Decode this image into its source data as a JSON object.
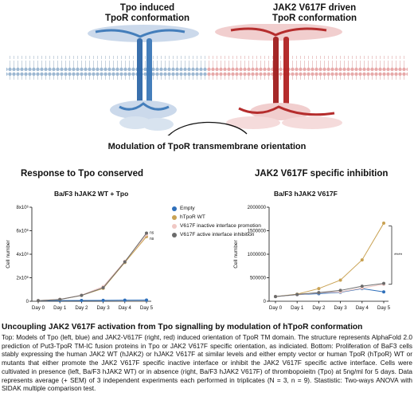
{
  "figure": {
    "left_conformation_title": "Tpo induced\nTpoR conformation",
    "right_conformation_title": "JAK2 V617F driven\nTpoR conformation",
    "modulation_label": "Modulation of TpoR transmembrane orientation",
    "left_section_title": "Response to Tpo conserved",
    "right_section_title": "JAK2 V617F specific inhibition",
    "colors": {
      "tpo_left": "#3a78b8",
      "jak2_right": "#b22222",
      "membrane_left": "#9dbbd6",
      "membrane_right": "#e8a6a6"
    }
  },
  "legend": {
    "items": [
      {
        "label": "Empty",
        "color": "#2e6fba"
      },
      {
        "label": "hTpoR WT",
        "color": "#c9a253"
      },
      {
        "label": "V617F inactive interface promotion",
        "color": "#f0c8c4"
      },
      {
        "label": "V617F active interface inhibition",
        "color": "#6b6b6b"
      }
    ]
  },
  "chart_data": [
    {
      "type": "line",
      "title": "Ba/F3 hJAK2 WT + Tpo",
      "ylabel": "Cell number",
      "x": [
        "Day 0",
        "Day 1",
        "Day 2",
        "Day 3",
        "Day 4",
        "Day 5"
      ],
      "ylim": [
        0,
        8000000
      ],
      "yticks": [
        "0",
        "2x10⁶",
        "4x10⁶",
        "6x10⁶",
        "8x10⁶"
      ],
      "ytick_values": [
        0,
        2000000,
        4000000,
        6000000,
        8000000
      ],
      "annotations": [
        "ns",
        "ns"
      ],
      "series": [
        {
          "name": "Empty",
          "values": [
            50000,
            60000,
            70000,
            80000,
            90000,
            100000
          ]
        },
        {
          "name": "hTpoR WT",
          "values": [
            50000,
            150000,
            500000,
            1100000,
            3300000,
            5500000
          ]
        },
        {
          "name": "V617F inactive interface promotion",
          "values": [
            50000,
            160000,
            520000,
            1250000,
            3400000,
            5650000
          ]
        },
        {
          "name": "V617F active interface inhibition",
          "values": [
            50000,
            150000,
            500000,
            1150000,
            3350000,
            5800000
          ]
        }
      ]
    },
    {
      "type": "line",
      "title": "Ba/F3 hJAK2 V617F",
      "ylabel": "Cell number",
      "x": [
        "Day 0",
        "Day 1",
        "Day 2",
        "Day 3",
        "Day 4",
        "Day 5"
      ],
      "ylim": [
        0,
        2000000
      ],
      "yticks": [
        "0",
        "500000",
        "1000000",
        "1500000",
        "2000000"
      ],
      "ytick_values": [
        0,
        500000,
        1000000,
        1500000,
        2000000
      ],
      "annotations": [
        "****"
      ],
      "series": [
        {
          "name": "Empty",
          "values": [
            100000,
            140000,
            160000,
            190000,
            270000,
            200000
          ]
        },
        {
          "name": "hTpoR WT",
          "values": [
            100000,
            150000,
            270000,
            450000,
            880000,
            1660000
          ]
        },
        {
          "name": "V617F inactive interface promotion",
          "values": [
            100000,
            140000,
            180000,
            200000,
            280000,
            360000
          ]
        },
        {
          "name": "V617F active interface inhibition",
          "values": [
            100000,
            145000,
            185000,
            230000,
            320000,
            380000
          ]
        }
      ]
    }
  ],
  "caption": {
    "title": "Uncoupling JAK2 V617F activation from Tpo signalling by modulation of hTpoR conformation",
    "body": "Top: Models of Tpo (left, blue) and JAK2-V617F (right, red) induced orientation of TpoR TM domain. The structure represents AlphaFold 2.0 prediction of Put3-TpoR TM-IC fusion proteins in Tpo or JAK2 V617F specific orientation, as indiciated. Bottom: Proliferation of BaF3 cells stably expressing the human JAK2 WT (hJAK2) or hJAK2 V617F at similar levels and either empty vector or human TpoR (hTpoR) WT or mutants that either promote the JAK2 V617F specific inactive interface or inhibit the JAK2 V617F specific active interface. Cells were cultivated in presence (left, Ba/F3 hJAK2 WT) or in absence (right, Ba/F3 hJAK2 V617F) of thrombopoieitn (Tpo) at 5ng/ml for 5 days. Data represents average (+ SEM) of 3 independent experiments each performed in triplicates (N = 3, n = 9). Stastistic: Two-ways ANOVA with SIDAK multiple comparison test."
  }
}
